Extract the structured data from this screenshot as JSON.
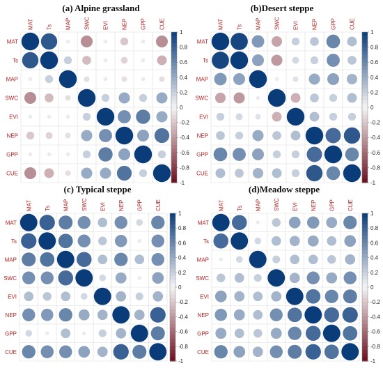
{
  "variables": [
    "MAT",
    "Ts",
    "MAP",
    "SWC",
    "EVI",
    "NEP",
    "GPP",
    "CUE"
  ],
  "colorbar_ticks": [
    "1",
    "0.8",
    "0.6",
    "0.4",
    "0.2",
    "0",
    "-0.2",
    "-0.4",
    "-0.6",
    "-0.8",
    "-1"
  ],
  "colors": {
    "positive": "#0b3c7a",
    "neutral": "#f5f5f5",
    "negative": "#6b0f1f",
    "label": "#b22222"
  },
  "chart_data": [
    {
      "type": "heatmap",
      "subtype": "correlation-circles",
      "title": "(a) Alpine grassland",
      "variables": [
        "MAT",
        "Ts",
        "MAP",
        "SWC",
        "EVI",
        "NEP",
        "GPP",
        "CUE"
      ],
      "scale": [
        -1,
        1
      ],
      "matrix": [
        [
          1.0,
          0.85,
          0.05,
          -0.45,
          -0.05,
          -0.2,
          -0.05,
          -0.45
        ],
        [
          0.85,
          1.0,
          0.2,
          -0.25,
          -0.05,
          -0.15,
          -0.05,
          -0.3
        ],
        [
          0.05,
          0.2,
          1.0,
          -0.1,
          -0.05,
          -0.1,
          -0.05,
          -0.1
        ],
        [
          -0.45,
          -0.25,
          -0.1,
          1.0,
          0.2,
          0.4,
          0.2,
          0.4
        ],
        [
          -0.05,
          -0.05,
          -0.05,
          0.2,
          1.0,
          0.55,
          0.65,
          0.4
        ],
        [
          -0.2,
          -0.15,
          -0.1,
          0.4,
          0.55,
          1.0,
          0.45,
          0.7
        ],
        [
          -0.05,
          -0.05,
          -0.05,
          0.2,
          0.65,
          0.45,
          1.0,
          0.2
        ],
        [
          -0.45,
          -0.3,
          -0.1,
          0.4,
          0.4,
          0.7,
          0.2,
          1.0
        ]
      ]
    },
    {
      "type": "heatmap",
      "subtype": "correlation-circles",
      "title": "(b)Desert steppe",
      "variables": [
        "MAT",
        "Ts",
        "MAP",
        "SWC",
        "EVI",
        "NEP",
        "GPP",
        "CUE"
      ],
      "scale": [
        -1,
        1
      ],
      "matrix": [
        [
          1.0,
          0.95,
          0.5,
          -0.35,
          0.2,
          0.25,
          0.6,
          0.3
        ],
        [
          0.95,
          1.0,
          0.45,
          -0.4,
          0.15,
          0.2,
          0.55,
          0.25
        ],
        [
          0.5,
          0.45,
          1.0,
          0.05,
          0.1,
          0.4,
          0.45,
          0.35
        ],
        [
          -0.35,
          -0.4,
          0.05,
          1.0,
          -0.3,
          0.25,
          0.2,
          0.3
        ],
        [
          0.2,
          0.15,
          0.1,
          -0.3,
          1.0,
          0.3,
          0.2,
          0.2
        ],
        [
          0.25,
          0.2,
          0.4,
          0.25,
          0.3,
          1.0,
          0.75,
          0.85
        ],
        [
          0.6,
          0.55,
          0.45,
          0.2,
          0.2,
          0.75,
          1.0,
          0.6
        ],
        [
          0.3,
          0.25,
          0.35,
          0.3,
          0.2,
          0.85,
          0.6,
          1.0
        ]
      ]
    },
    {
      "type": "heatmap",
      "subtype": "correlation-circles",
      "title": "(c)  Typical steppe",
      "variables": [
        "MAT",
        "Ts",
        "MAP",
        "SWC",
        "EVI",
        "NEP",
        "GPP",
        "CUE"
      ],
      "scale": [
        -1,
        1
      ],
      "matrix": [
        [
          1.0,
          0.8,
          0.65,
          0.55,
          0.3,
          0.55,
          0.15,
          0.6
        ],
        [
          0.8,
          1.0,
          0.7,
          0.55,
          0.25,
          0.5,
          0.05,
          0.55
        ],
        [
          0.65,
          0.7,
          1.0,
          0.75,
          0.3,
          0.6,
          0.3,
          0.55
        ],
        [
          0.55,
          0.55,
          0.75,
          1.0,
          0.15,
          0.4,
          0.05,
          0.45
        ],
        [
          0.3,
          0.25,
          0.3,
          0.15,
          1.0,
          0.35,
          0.2,
          0.35
        ],
        [
          0.55,
          0.5,
          0.6,
          0.4,
          0.35,
          1.0,
          0.35,
          0.8
        ],
        [
          0.15,
          0.05,
          0.3,
          0.05,
          0.2,
          0.35,
          1.0,
          0.65
        ],
        [
          0.6,
          0.55,
          0.55,
          0.45,
          0.35,
          0.8,
          0.65,
          1.0
        ]
      ]
    },
    {
      "type": "heatmap",
      "subtype": "correlation-circles",
      "title": "(d)Meadow steppe",
      "variables": [
        "MAT",
        "Ts",
        "MAP",
        "SWC",
        "EVI",
        "NEP",
        "GPP",
        "CUE"
      ],
      "scale": [
        -1,
        1
      ],
      "matrix": [
        [
          1.0,
          0.75,
          0.05,
          0.25,
          0.45,
          0.5,
          0.4,
          0.6
        ],
        [
          0.75,
          1.0,
          0.15,
          0.3,
          0.35,
          0.4,
          0.3,
          0.45
        ],
        [
          0.05,
          0.15,
          1.0,
          0.2,
          0.3,
          0.3,
          0.25,
          0.35
        ],
        [
          0.25,
          0.3,
          0.2,
          1.0,
          0.35,
          0.55,
          0.4,
          0.55
        ],
        [
          0.45,
          0.35,
          0.3,
          0.35,
          1.0,
          0.7,
          0.6,
          0.65
        ],
        [
          0.5,
          0.4,
          0.3,
          0.55,
          0.7,
          1.0,
          0.75,
          0.8
        ],
        [
          0.4,
          0.3,
          0.25,
          0.4,
          0.6,
          0.75,
          1.0,
          0.7
        ],
        [
          0.6,
          0.45,
          0.35,
          0.55,
          0.65,
          0.8,
          0.7,
          1.0
        ]
      ]
    }
  ]
}
